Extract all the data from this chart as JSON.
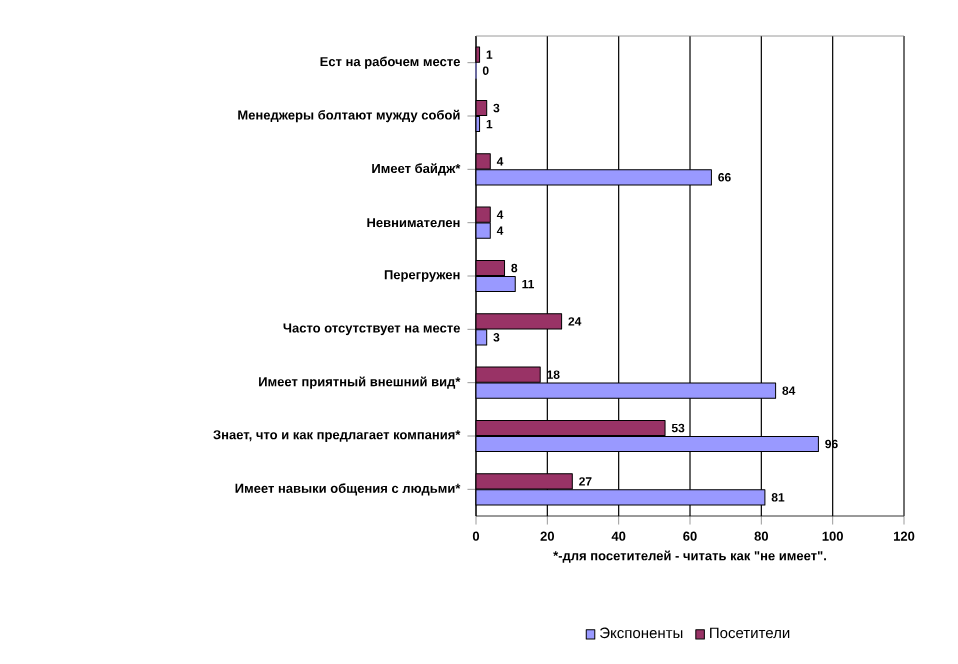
{
  "chart_data": {
    "type": "bar",
    "orientation": "horizontal",
    "categories": [
      "Ест на рабочем месте",
      "Менеджеры болтают мужду собой",
      "Имеет байдж*",
      "Невнимателен",
      "Перегружен",
      "Часто отсутствует на месте",
      "Имеет приятный внешний вид*",
      "Знает, что и как предлагает компания*",
      "Имеет навыки общения с людьми*"
    ],
    "series": [
      {
        "name": "Экспоненты",
        "color": "#9999ff",
        "values": [
          0,
          1,
          66,
          4,
          11,
          3,
          84,
          96,
          81
        ]
      },
      {
        "name": "Посетители",
        "color": "#993366",
        "values": [
          1,
          3,
          4,
          4,
          8,
          24,
          18,
          53,
          27
        ]
      }
    ],
    "xlabel": "*-для посетителей - читать как \"не имеет\".",
    "xlim": [
      0,
      120
    ],
    "xticks": [
      0,
      20,
      40,
      60,
      80,
      100,
      120
    ],
    "grid": "x",
    "legend": "bottom",
    "data_labels": true
  }
}
